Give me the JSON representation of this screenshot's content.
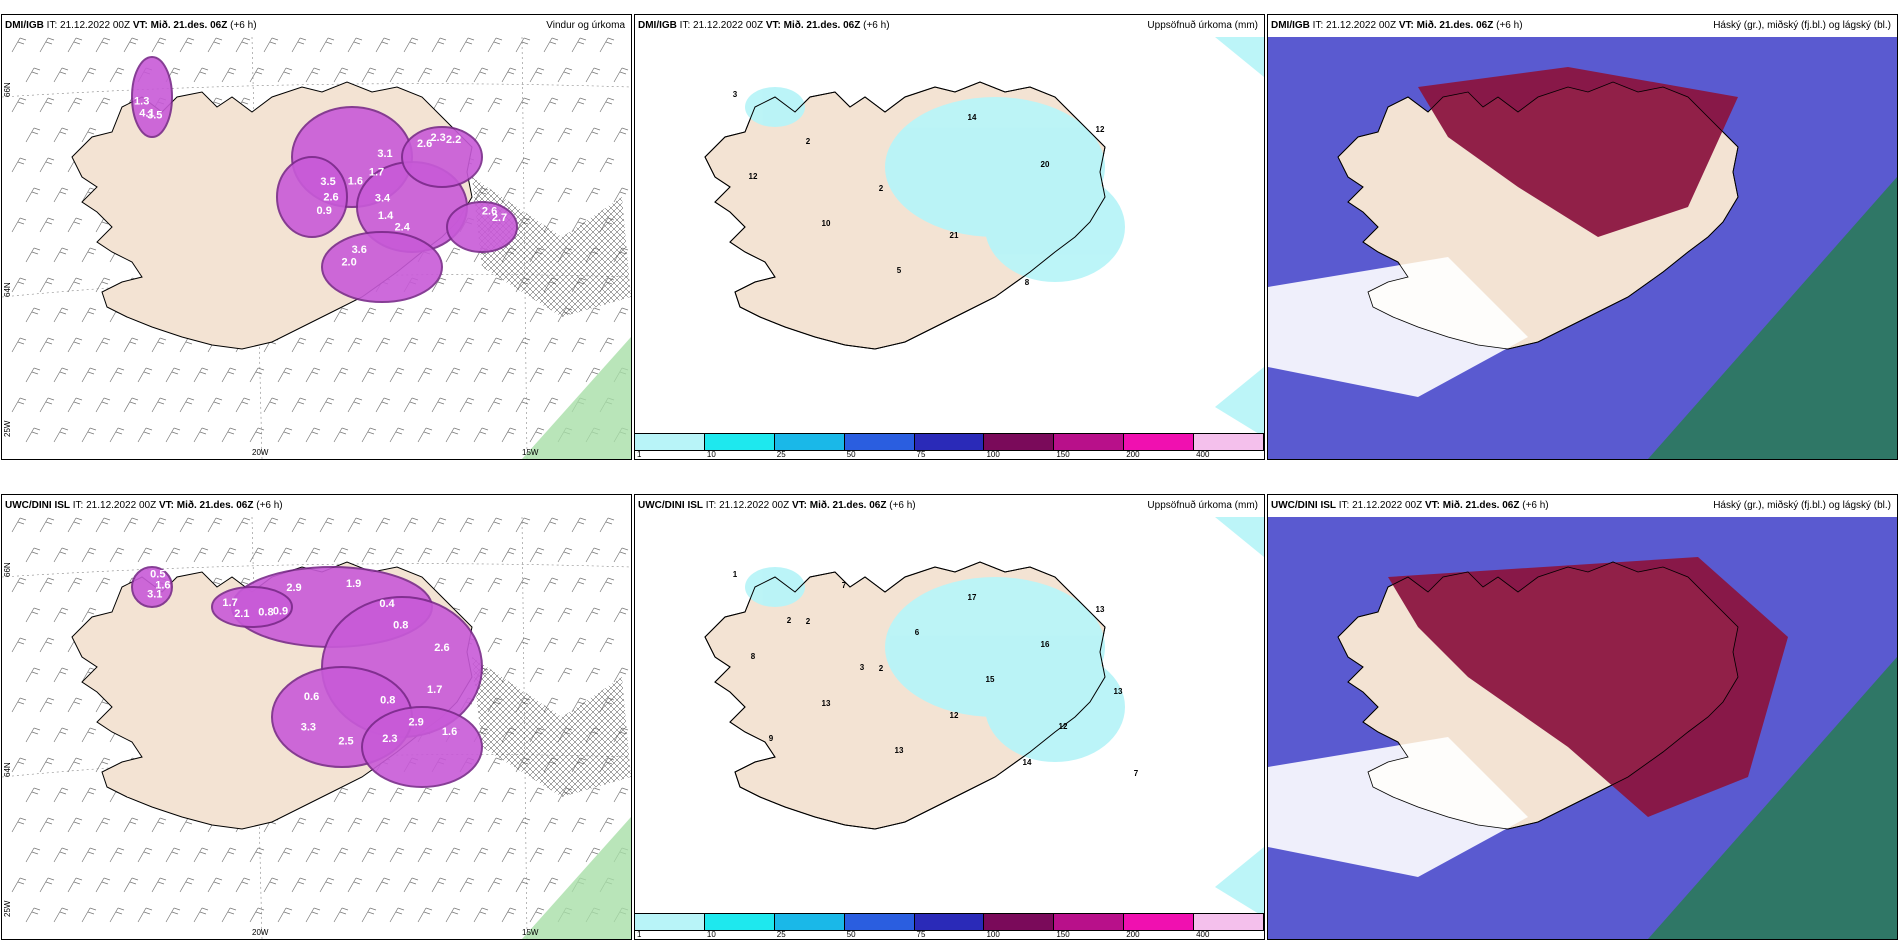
{
  "rows": [
    {
      "model": "DMI/IGB",
      "panels": [
        {
          "it": "IT: 21.12.2022 00Z",
          "vt": "VT: Mið. 21.des. 06Z",
          "lead": "(+6 h)",
          "title": "Vindur og úrkoma"
        },
        {
          "it": "IT: 21.12.2022 00Z",
          "vt": "VT: Mið. 21.des. 06Z",
          "lead": "(+6 h)",
          "title": "Uppsöfnuð úrkoma (mm)"
        },
        {
          "it": "IT: 21.12.2022 00Z",
          "vt": "VT: Mið. 21.des. 06Z",
          "lead": "(+6 h)",
          "title": "Háský (gr.), miðský (fj.bl.) og lágský (bl.)"
        }
      ],
      "wind_labels": [
        "3.1",
        "2.4",
        "2.6",
        "3.5",
        "3.5",
        "2.0",
        "2.6",
        "1.7",
        "1.4",
        "2.3",
        "2.6",
        "4.1",
        "3.6",
        "2.7",
        "1.6",
        "3.4",
        "2.2",
        "0.9",
        "1.3"
      ],
      "precip_labels": [
        "3",
        "2",
        "2",
        "21",
        "8",
        "12",
        "12",
        "10",
        "5",
        "14",
        "20"
      ]
    },
    {
      "model": "UWC/DINI ISL",
      "panels": [
        {
          "it": "IT: 21.12.2022 00Z",
          "vt": "VT: Mið. 21.des. 06Z",
          "lead": "(+6 h)",
          "title": ""
        },
        {
          "it": "IT: 21.12.2022 00Z",
          "vt": "VT: Mið. 21.des. 06Z",
          "lead": "(+6 h)",
          "title": "Uppsöfnuð úrkoma (mm)"
        },
        {
          "it": "IT: 21.12.2022 00Z",
          "vt": "VT: Mið. 21.des. 06Z",
          "lead": "(+6 h)",
          "title": "Háský (gr.), miðský (fj.bl.) og lágský (bl.)"
        }
      ],
      "wind_labels": [
        "0.4",
        "0.8",
        "0.6",
        "1.6",
        "3.1",
        "1.7",
        "1.9",
        "1.7",
        "3.3",
        "2.9",
        "1.6",
        "2.1",
        "2.9",
        "2.6",
        "2.5",
        "2.3",
        "0.5",
        "0.8",
        "0.9",
        "0.8"
      ],
      "precip_labels": [
        "1",
        "2",
        "2",
        "12",
        "14",
        "13",
        "8",
        "13",
        "13",
        "17",
        "16",
        "13",
        "9",
        "7",
        "6",
        "15",
        "12",
        "7",
        "2",
        "3"
      ]
    }
  ],
  "axis_labels": {
    "lon1": "20W",
    "lon2": "15W",
    "lat1": "64N",
    "lat2": "66N",
    "lon3": "25W"
  },
  "colorbar": {
    "ticks": [
      "1",
      "10",
      "25",
      "50",
      "75",
      "100",
      "150",
      "200",
      "400"
    ],
    "colors": [
      "#b8f4f8",
      "#1ee8ee",
      "#1ab8e8",
      "#2a5ee0",
      "#2a2ab8",
      "#7a0a5a",
      "#b8108a",
      "#f010b0",
      "#f4c0ec"
    ]
  },
  "colors": {
    "land": "#f3e3d3",
    "sea": "#ffffff",
    "precip_light": "#b8f4f8",
    "wind_purple": "#c85ad8",
    "cloud_high": "#8b1540",
    "cloud_mid": "#4040c0",
    "cloud_low": "#2a7a5a"
  }
}
